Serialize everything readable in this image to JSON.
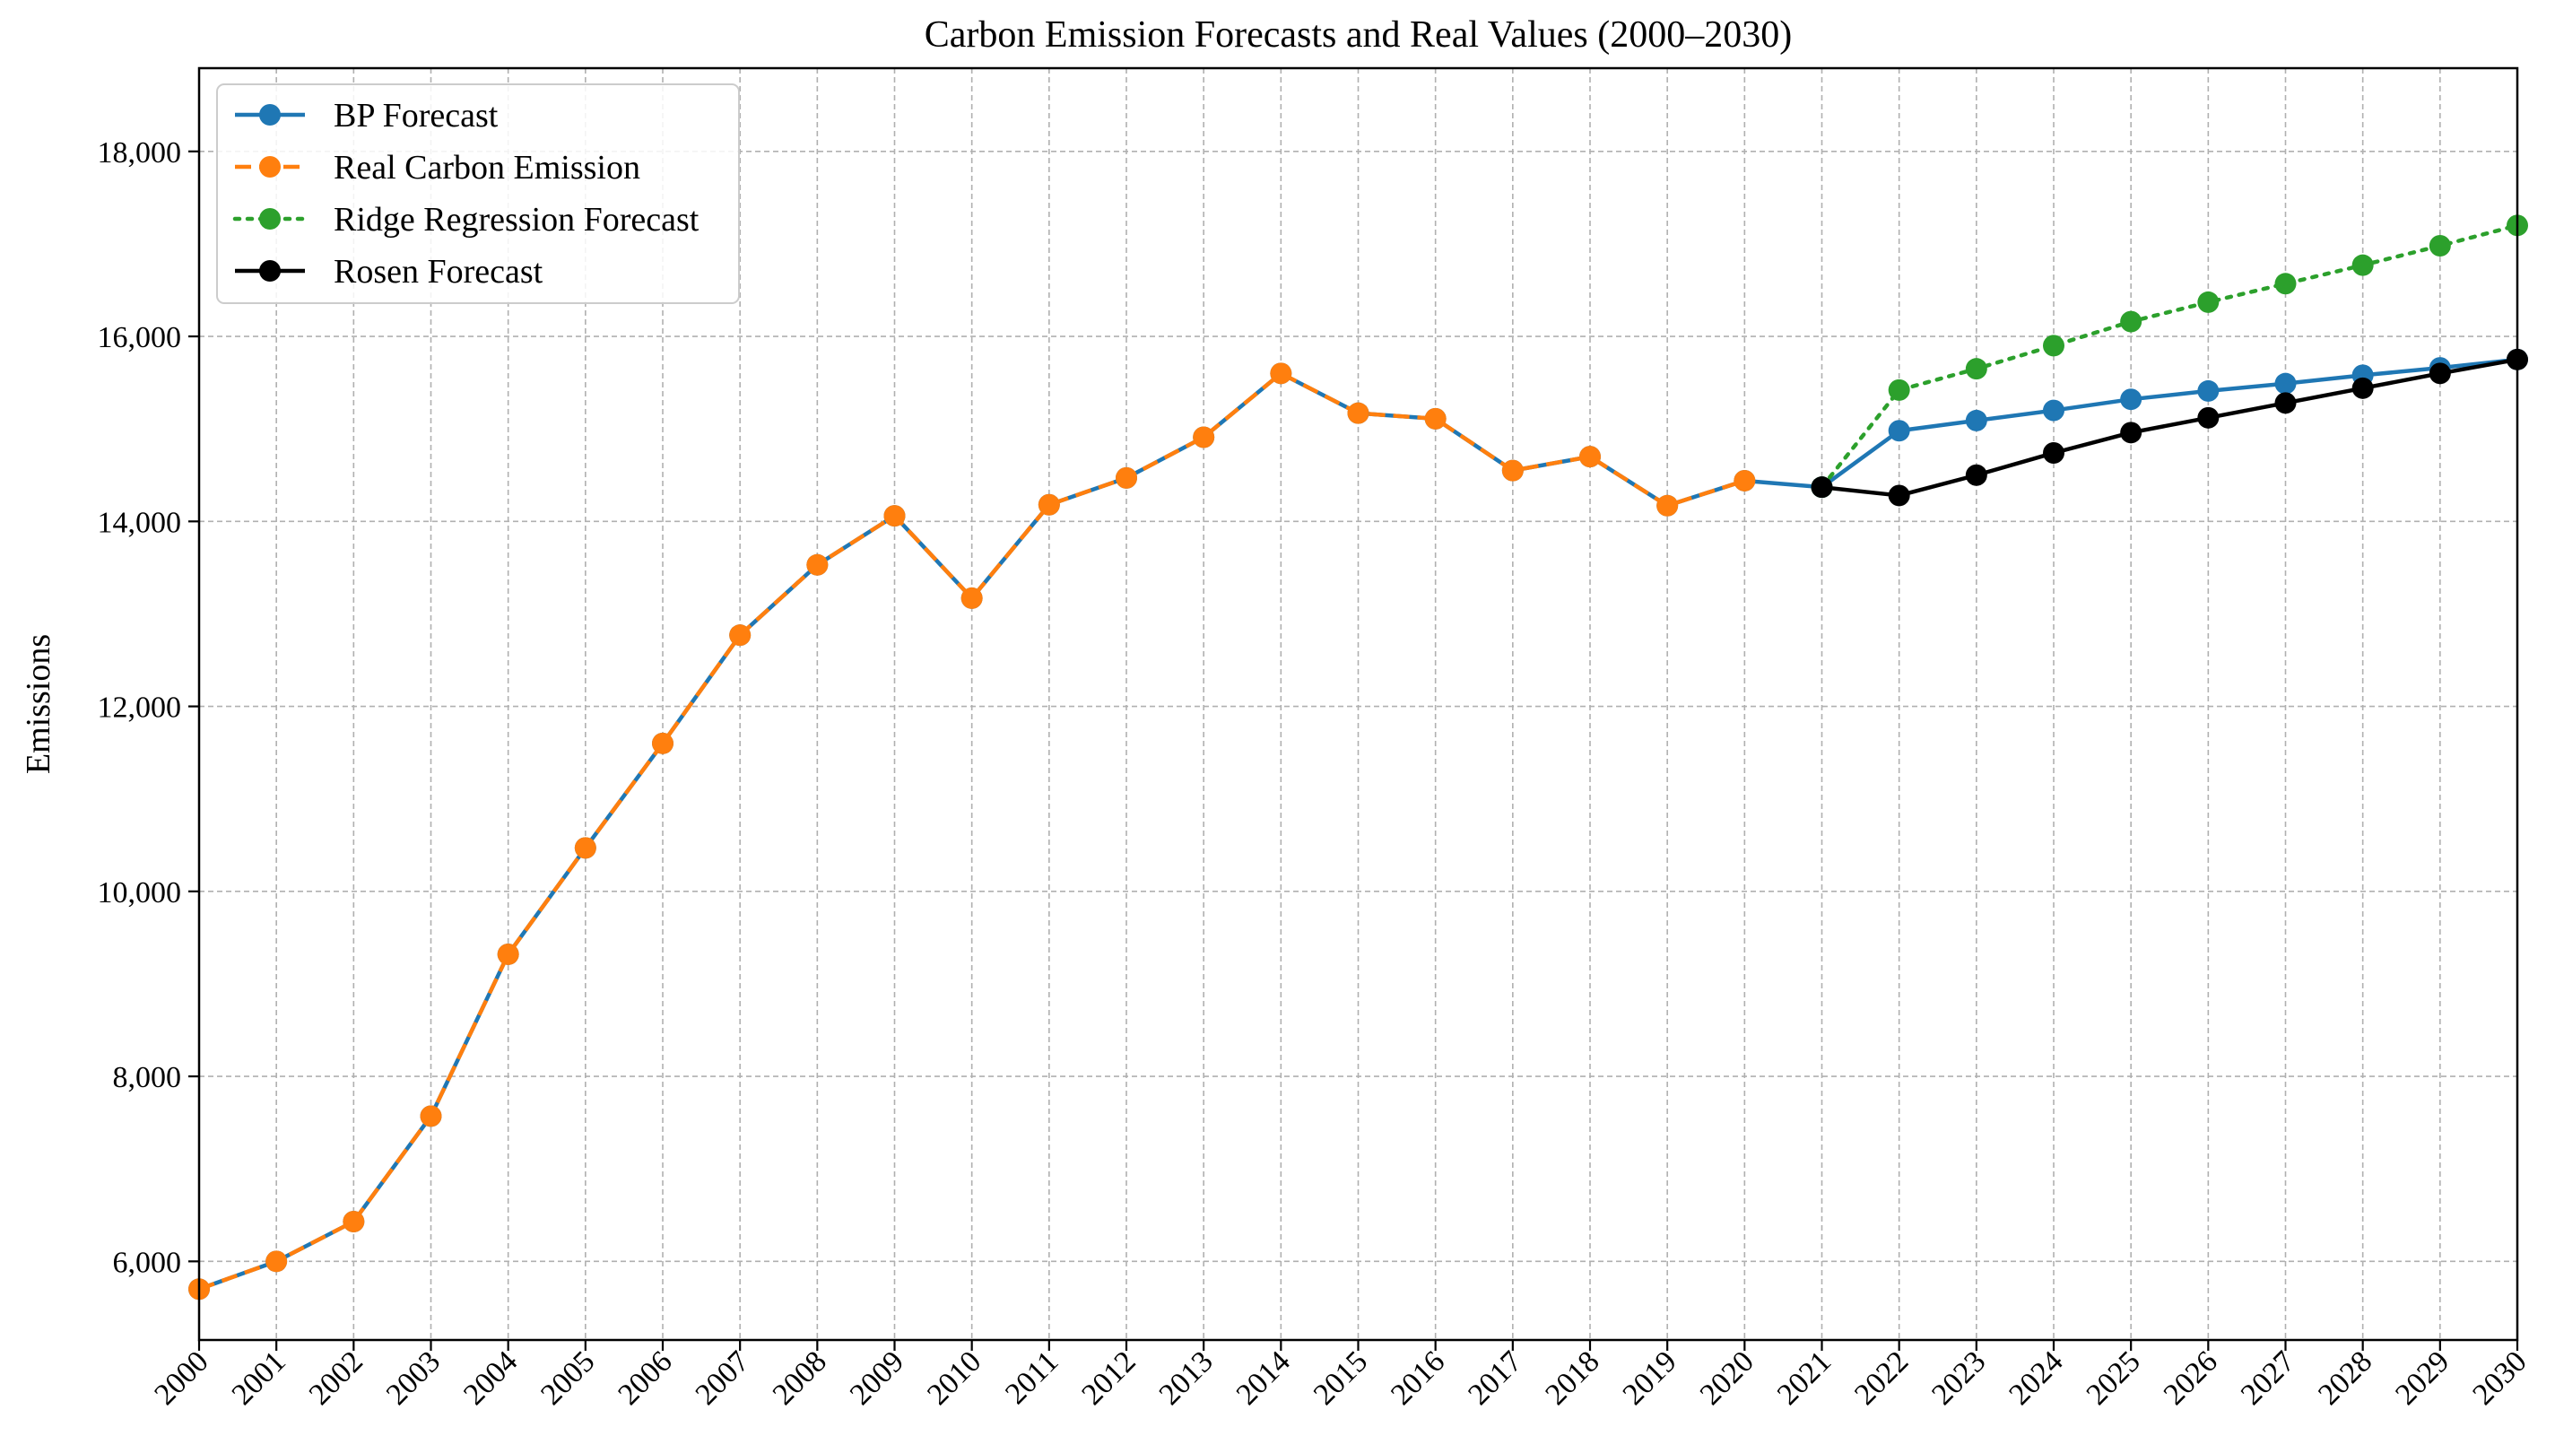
{
  "chart_data": {
    "type": "line",
    "title": "Carbon Emission Forecasts and Real Values (2000–2030)",
    "xlabel": "",
    "ylabel": "Emissions",
    "xlim": [
      2000,
      2030
    ],
    "ylim": [
      5150,
      18900
    ],
    "yticks": [
      6000,
      8000,
      10000,
      12000,
      14000,
      16000,
      18000
    ],
    "ytick_labels": [
      "6,000",
      "8,000",
      "10,000",
      "12,000",
      "14,000",
      "16,000",
      "18,000"
    ],
    "x": [
      2000,
      2001,
      2002,
      2003,
      2004,
      2005,
      2006,
      2007,
      2008,
      2009,
      2010,
      2011,
      2012,
      2013,
      2014,
      2015,
      2016,
      2017,
      2018,
      2019,
      2020,
      2021,
      2022,
      2023,
      2024,
      2025,
      2026,
      2027,
      2028,
      2029,
      2030
    ],
    "xtick_labels": [
      "2000",
      "2001",
      "2002",
      "2003",
      "2004",
      "2005",
      "2006",
      "2007",
      "2008",
      "2009",
      "2010",
      "2011",
      "2012",
      "2013",
      "2014",
      "2015",
      "2016",
      "2017",
      "2018",
      "2019",
      "2020",
      "2021",
      "2022",
      "2023",
      "2024",
      "2025",
      "2026",
      "2027",
      "2028",
      "2029",
      "2030"
    ],
    "grid": true,
    "legend_position": "top-left",
    "series": [
      {
        "name": "BP Forecast",
        "color": "#1f77b4",
        "line_style": "solid",
        "x": [
          2000,
          2001,
          2002,
          2003,
          2004,
          2005,
          2006,
          2007,
          2008,
          2009,
          2010,
          2011,
          2012,
          2013,
          2014,
          2015,
          2016,
          2017,
          2018,
          2019,
          2020,
          2021,
          2022,
          2023,
          2024,
          2025,
          2026,
          2027,
          2028,
          2029,
          2030
        ],
        "values": [
          5700,
          6000,
          6430,
          7570,
          9320,
          10470,
          11600,
          12770,
          13530,
          14060,
          13170,
          14180,
          14470,
          14910,
          15600,
          15170,
          15110,
          14550,
          14700,
          14170,
          14440,
          14370,
          14980,
          15090,
          15200,
          15320,
          15410,
          15490,
          15580,
          15660,
          15750
        ]
      },
      {
        "name": "Real Carbon Emission",
        "color": "#ff7f0e",
        "line_style": "dashed",
        "x": [
          2000,
          2001,
          2002,
          2003,
          2004,
          2005,
          2006,
          2007,
          2008,
          2009,
          2010,
          2011,
          2012,
          2013,
          2014,
          2015,
          2016,
          2017,
          2018,
          2019,
          2020
        ],
        "values": [
          5700,
          6000,
          6430,
          7570,
          9320,
          10470,
          11600,
          12770,
          13530,
          14060,
          13170,
          14180,
          14470,
          14910,
          15600,
          15170,
          15110,
          14550,
          14700,
          14170,
          14440
        ]
      },
      {
        "name": "Ridge Regression Forecast",
        "color": "#2ca02c",
        "line_style": "dotted",
        "x": [
          2021,
          2022,
          2023,
          2024,
          2025,
          2026,
          2027,
          2028,
          2029,
          2030
        ],
        "values": [
          14370,
          15420,
          15650,
          15900,
          16160,
          16370,
          16570,
          16770,
          16980,
          17200
        ]
      },
      {
        "name": "Rosen Forecast",
        "color": "#000000",
        "line_style": "solid",
        "x": [
          2021,
          2022,
          2023,
          2024,
          2025,
          2026,
          2027,
          2028,
          2029,
          2030
        ],
        "values": [
          14370,
          14280,
          14500,
          14740,
          14960,
          15120,
          15280,
          15440,
          15600,
          15750
        ]
      }
    ]
  }
}
